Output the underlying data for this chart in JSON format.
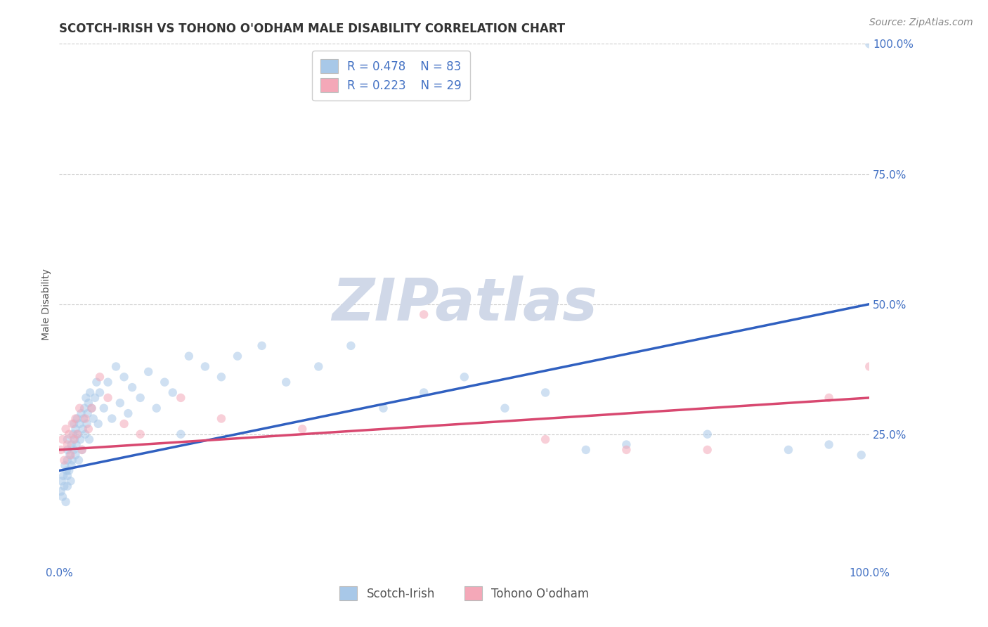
{
  "title": "SCOTCH-IRISH VS TOHONO O'ODHAM MALE DISABILITY CORRELATION CHART",
  "source": "Source: ZipAtlas.com",
  "ylabel": "Male Disability",
  "xlim": [
    0,
    1.0
  ],
  "ylim": [
    0,
    1.0
  ],
  "xticks": [
    0,
    0.25,
    0.5,
    0.75,
    1.0
  ],
  "yticks": [
    0.25,
    0.5,
    0.75,
    1.0
  ],
  "xticklabels": [
    "0.0%",
    "",
    "",
    "",
    "100.0%"
  ],
  "yticklabels": [
    "25.0%",
    "50.0%",
    "75.0%",
    "100.0%"
  ],
  "blue_R": 0.478,
  "blue_N": 83,
  "pink_R": 0.223,
  "pink_N": 29,
  "blue_color": "#a8c8e8",
  "pink_color": "#f4a8b8",
  "blue_line_color": "#3060c0",
  "pink_line_color": "#d84870",
  "watermark_color": "#d0d8e8",
  "blue_trendline_x": [
    0.0,
    1.0
  ],
  "blue_trendline_y": [
    0.18,
    0.5
  ],
  "pink_trendline_x": [
    0.0,
    1.0
  ],
  "pink_trendline_y": [
    0.22,
    0.32
  ],
  "blue_scatter_x": [
    0.002,
    0.003,
    0.004,
    0.005,
    0.006,
    0.007,
    0.008,
    0.009,
    0.01,
    0.01,
    0.01,
    0.01,
    0.01,
    0.012,
    0.013,
    0.014,
    0.015,
    0.015,
    0.016,
    0.017,
    0.018,
    0.018,
    0.019,
    0.02,
    0.02,
    0.021,
    0.022,
    0.023,
    0.024,
    0.025,
    0.026,
    0.027,
    0.028,
    0.029,
    0.03,
    0.031,
    0.032,
    0.033,
    0.034,
    0.035,
    0.036,
    0.037,
    0.038,
    0.04,
    0.042,
    0.044,
    0.046,
    0.048,
    0.05,
    0.055,
    0.06,
    0.065,
    0.07,
    0.075,
    0.08,
    0.085,
    0.09,
    0.1,
    0.11,
    0.12,
    0.13,
    0.14,
    0.15,
    0.16,
    0.18,
    0.2,
    0.22,
    0.25,
    0.28,
    0.32,
    0.36,
    0.4,
    0.45,
    0.5,
    0.55,
    0.6,
    0.65,
    0.7,
    0.8,
    0.9,
    0.95,
    0.99,
    1.0
  ],
  "blue_scatter_y": [
    0.14,
    0.16,
    0.13,
    0.17,
    0.15,
    0.19,
    0.12,
    0.18,
    0.2,
    0.22,
    0.15,
    0.17,
    0.24,
    0.18,
    0.21,
    0.16,
    0.19,
    0.23,
    0.2,
    0.25,
    0.22,
    0.27,
    0.24,
    0.21,
    0.26,
    0.23,
    0.28,
    0.25,
    0.2,
    0.27,
    0.24,
    0.29,
    0.22,
    0.26,
    0.28,
    0.3,
    0.25,
    0.32,
    0.27,
    0.29,
    0.31,
    0.24,
    0.33,
    0.3,
    0.28,
    0.32,
    0.35,
    0.27,
    0.33,
    0.3,
    0.35,
    0.28,
    0.38,
    0.31,
    0.36,
    0.29,
    0.34,
    0.32,
    0.37,
    0.3,
    0.35,
    0.33,
    0.25,
    0.4,
    0.38,
    0.36,
    0.4,
    0.42,
    0.35,
    0.38,
    0.42,
    0.3,
    0.33,
    0.36,
    0.3,
    0.33,
    0.22,
    0.23,
    0.25,
    0.22,
    0.23,
    0.21,
    1.0
  ],
  "pink_scatter_x": [
    0.002,
    0.004,
    0.006,
    0.008,
    0.01,
    0.012,
    0.014,
    0.016,
    0.018,
    0.02,
    0.022,
    0.025,
    0.028,
    0.032,
    0.036,
    0.04,
    0.05,
    0.06,
    0.08,
    0.1,
    0.15,
    0.2,
    0.3,
    0.45,
    0.6,
    0.7,
    0.8,
    0.95,
    1.0
  ],
  "pink_scatter_y": [
    0.22,
    0.24,
    0.2,
    0.26,
    0.23,
    0.25,
    0.21,
    0.27,
    0.24,
    0.28,
    0.25,
    0.3,
    0.22,
    0.28,
    0.26,
    0.3,
    0.36,
    0.32,
    0.27,
    0.25,
    0.32,
    0.28,
    0.26,
    0.48,
    0.24,
    0.22,
    0.22,
    0.32,
    0.38
  ],
  "title_fontsize": 12,
  "source_fontsize": 10,
  "axis_label_fontsize": 10,
  "tick_fontsize": 11,
  "legend_fontsize": 12,
  "background_color": "#ffffff",
  "grid_color": "#cccccc",
  "tick_color": "#4472c4",
  "scatter_size": 80,
  "scatter_alpha": 0.55
}
